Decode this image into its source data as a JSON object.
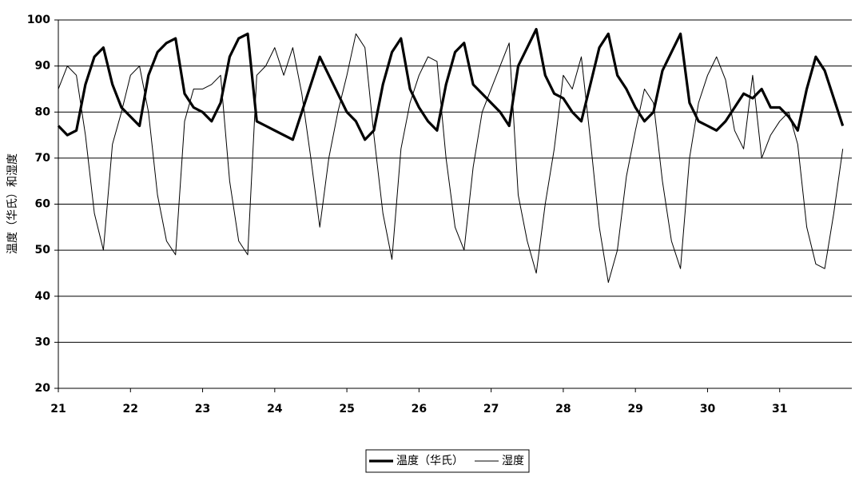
{
  "chart_data": {
    "type": "line",
    "y_label": "温度（华氏）和湿度",
    "x": [
      21,
      21.125,
      21.25,
      21.375,
      21.5,
      21.625,
      21.75,
      21.875,
      22,
      22.125,
      22.25,
      22.375,
      22.5,
      22.625,
      22.75,
      22.875,
      23,
      23.125,
      23.25,
      23.375,
      23.5,
      23.625,
      23.75,
      23.875,
      24,
      24.125,
      24.25,
      24.375,
      24.5,
      24.625,
      24.75,
      24.875,
      25,
      25.125,
      25.25,
      25.375,
      25.5,
      25.625,
      25.75,
      25.875,
      26,
      26.125,
      26.25,
      26.375,
      26.5,
      26.625,
      26.75,
      26.875,
      27,
      27.125,
      27.25,
      27.375,
      27.5,
      27.625,
      27.75,
      27.875,
      28,
      28.125,
      28.25,
      28.375,
      28.5,
      28.625,
      28.75,
      28.875,
      29,
      29.125,
      29.25,
      29.375,
      29.5,
      29.625,
      29.75,
      29.875,
      30,
      30.125,
      30.25,
      30.375,
      30.5,
      30.625,
      30.75,
      30.875,
      31,
      31.125,
      31.25,
      31.375,
      31.5,
      31.625,
      31.75,
      31.875
    ],
    "series": [
      {
        "name": "温度（华氏）",
        "color": "#000000",
        "width": 3.2,
        "values": [
          77,
          75,
          76,
          86,
          92,
          94,
          86,
          81,
          79,
          77,
          88,
          93,
          95,
          96,
          84,
          81,
          80,
          78,
          82,
          92,
          96,
          97,
          78,
          77,
          76,
          75,
          74,
          80,
          86,
          92,
          88,
          84,
          80,
          78,
          74,
          76,
          86,
          93,
          96,
          85,
          81,
          78,
          76,
          86,
          93,
          95,
          86,
          84,
          82,
          80,
          77,
          90,
          94,
          98,
          88,
          84,
          83,
          80,
          78,
          86,
          94,
          97,
          88,
          85,
          81,
          78,
          80,
          89,
          93,
          97,
          82,
          78,
          77,
          76,
          78,
          81,
          84,
          83,
          85,
          81,
          81,
          79,
          76,
          85,
          92,
          89,
          83,
          77
        ]
      },
      {
        "name": "湿度",
        "color": "#000000",
        "width": 1,
        "values": [
          85,
          90,
          88,
          75,
          58,
          50,
          73,
          80,
          88,
          90,
          80,
          62,
          52,
          49,
          78,
          85,
          85,
          86,
          88,
          65,
          52,
          49,
          88,
          90,
          94,
          88,
          94,
          84,
          70,
          55,
          70,
          80,
          88,
          97,
          94,
          75,
          58,
          48,
          72,
          82,
          88,
          92,
          91,
          70,
          55,
          50,
          68,
          80,
          85,
          90,
          95,
          62,
          52,
          45,
          60,
          72,
          88,
          85,
          92,
          74,
          55,
          43,
          50,
          66,
          76,
          85,
          82,
          65,
          52,
          46,
          70,
          82,
          88,
          92,
          87,
          76,
          72,
          88,
          70,
          75,
          78,
          80,
          73,
          55,
          47,
          46,
          58,
          72
        ]
      }
    ],
    "xlim": [
      21,
      32
    ],
    "xticks": [
      21,
      22,
      23,
      24,
      25,
      26,
      27,
      28,
      29,
      30,
      31
    ],
    "ylim": [
      20,
      100
    ],
    "yticks": [
      20,
      30,
      40,
      50,
      60,
      70,
      80,
      90,
      100
    ],
    "grid": true,
    "legend": "bottom"
  }
}
